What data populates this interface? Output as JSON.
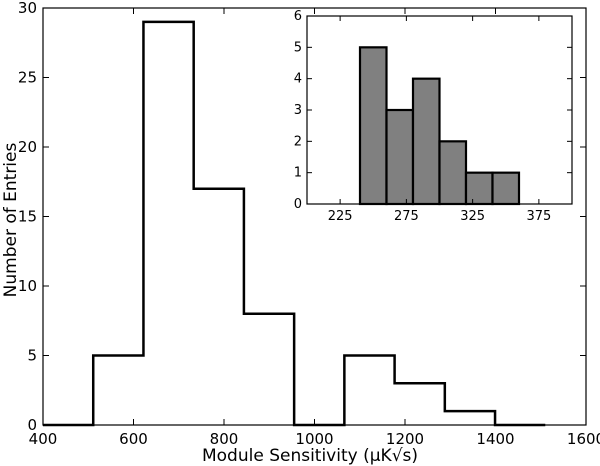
{
  "chart_data": [
    {
      "type": "histogram-step",
      "xlabel": "Module Sensitivity (μK√s)",
      "ylabel": "Number of Entries",
      "xlim": [
        400,
        1600
      ],
      "ylim": [
        0,
        30
      ],
      "x_ticks": [
        400,
        600,
        800,
        1000,
        1200,
        1400,
        1600
      ],
      "y_ticks": [
        0,
        5,
        10,
        15,
        20,
        25,
        30
      ],
      "bin_edges": [
        400,
        511,
        622,
        733,
        844,
        955,
        1066,
        1177,
        1288,
        1399,
        1510
      ],
      "counts": [
        0,
        5,
        29,
        17,
        8,
        0,
        5,
        3,
        1,
        0
      ],
      "grid": false
    },
    {
      "type": "histogram-filled",
      "xlim": [
        200,
        400
      ],
      "ylim": [
        0,
        6
      ],
      "x_ticks": [
        225,
        275,
        325,
        375
      ],
      "y_ticks": [
        0,
        1,
        2,
        3,
        4,
        5,
        6
      ],
      "bin_edges": [
        240,
        260,
        280,
        300,
        320,
        340,
        360
      ],
      "counts": [
        5,
        3,
        4,
        2,
        1,
        1
      ],
      "bar_color": "#808080",
      "grid": false
    }
  ]
}
